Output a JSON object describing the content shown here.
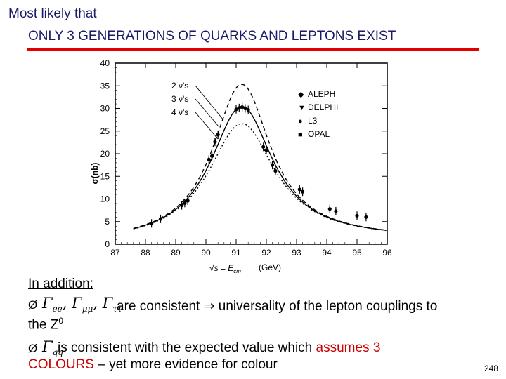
{
  "slide": {
    "title_line1": "Most likely that",
    "title_line2": "ONLY 3 GENERATIONS OF QUARKS AND LEPTONS EXIST",
    "addition_heading": "In addition:",
    "bullet_symbol": "Ø",
    "bullet1": {
      "gamma": "Γ",
      "sub_ee": "ee",
      "sub_mumu": "μμ",
      "sub_tautau": "ττ",
      "separator": ",",
      "text_a": "are consistent ⇒ universality of the lepton couplings to",
      "text_b": "the Z",
      "text_b_sup": "0"
    },
    "bullet2": {
      "gamma": "Γ",
      "sub": "qq",
      "text_a": "is consistent with the expected value which ",
      "text_a_red": "assumes 3",
      "text_b_red": "COLOURS",
      "text_b": " – yet more evidence for colour"
    },
    "page_number": "248"
  },
  "chart_data": {
    "type": "line",
    "ylabel": "σ(nb)",
    "xlabel_sqrt": "√s = E",
    "xlabel_sub": "cm",
    "xlabel_unit": "(GeV)",
    "xlim": [
      87,
      96
    ],
    "ylim": [
      0,
      40
    ],
    "x_ticks": [
      "87",
      "88",
      "89",
      "90",
      "91",
      "92",
      "93",
      "94",
      "95",
      "96"
    ],
    "y_ticks": [
      "0",
      "5",
      "10",
      "15",
      "20",
      "25",
      "30",
      "35",
      "40"
    ],
    "curve_labels": [
      "2 ν's",
      "3 ν's",
      "4 ν's"
    ],
    "legend": [
      {
        "symbol": "◆",
        "label": "ALEPH"
      },
      {
        "symbol": "▼",
        "label": "DELPHI"
      },
      {
        "symbol": "●",
        "label": "L3"
      },
      {
        "symbol": "■",
        "label": "OPAL"
      }
    ],
    "series": [
      {
        "name": "2 ν's",
        "dash": "dashed",
        "peak": 35.3,
        "gamma": 2.33,
        "continuum_scale": 1.0
      },
      {
        "name": "3 ν's",
        "dash": "solid",
        "peak": 30.4,
        "gamma": 2.5,
        "continuum_scale": 1.0
      },
      {
        "name": "4 ν's",
        "dash": "dotted",
        "peak": 26.6,
        "gamma": 2.67,
        "continuum_scale": 1.0
      }
    ],
    "mz": 91.19,
    "data_points": [
      {
        "x": 88.2,
        "y": 4.6
      },
      {
        "x": 88.5,
        "y": 5.6
      },
      {
        "x": 89.2,
        "y": 8.6
      },
      {
        "x": 89.3,
        "y": 9.1
      },
      {
        "x": 89.4,
        "y": 9.6
      },
      {
        "x": 90.1,
        "y": 18.7
      },
      {
        "x": 90.2,
        "y": 19.5
      },
      {
        "x": 90.3,
        "y": 22.6
      },
      {
        "x": 90.4,
        "y": 24.2
      },
      {
        "x": 91.0,
        "y": 29.8
      },
      {
        "x": 91.1,
        "y": 30.1
      },
      {
        "x": 91.2,
        "y": 30.3
      },
      {
        "x": 91.3,
        "y": 30.0
      },
      {
        "x": 91.4,
        "y": 29.7
      },
      {
        "x": 91.9,
        "y": 21.5
      },
      {
        "x": 92.0,
        "y": 20.8
      },
      {
        "x": 92.2,
        "y": 17.5
      },
      {
        "x": 92.3,
        "y": 16.2
      },
      {
        "x": 93.1,
        "y": 12.1
      },
      {
        "x": 93.2,
        "y": 11.6
      },
      {
        "x": 94.1,
        "y": 7.8
      },
      {
        "x": 94.3,
        "y": 7.3
      },
      {
        "x": 95.0,
        "y": 6.3
      },
      {
        "x": 95.3,
        "y": 6.0
      }
    ]
  }
}
